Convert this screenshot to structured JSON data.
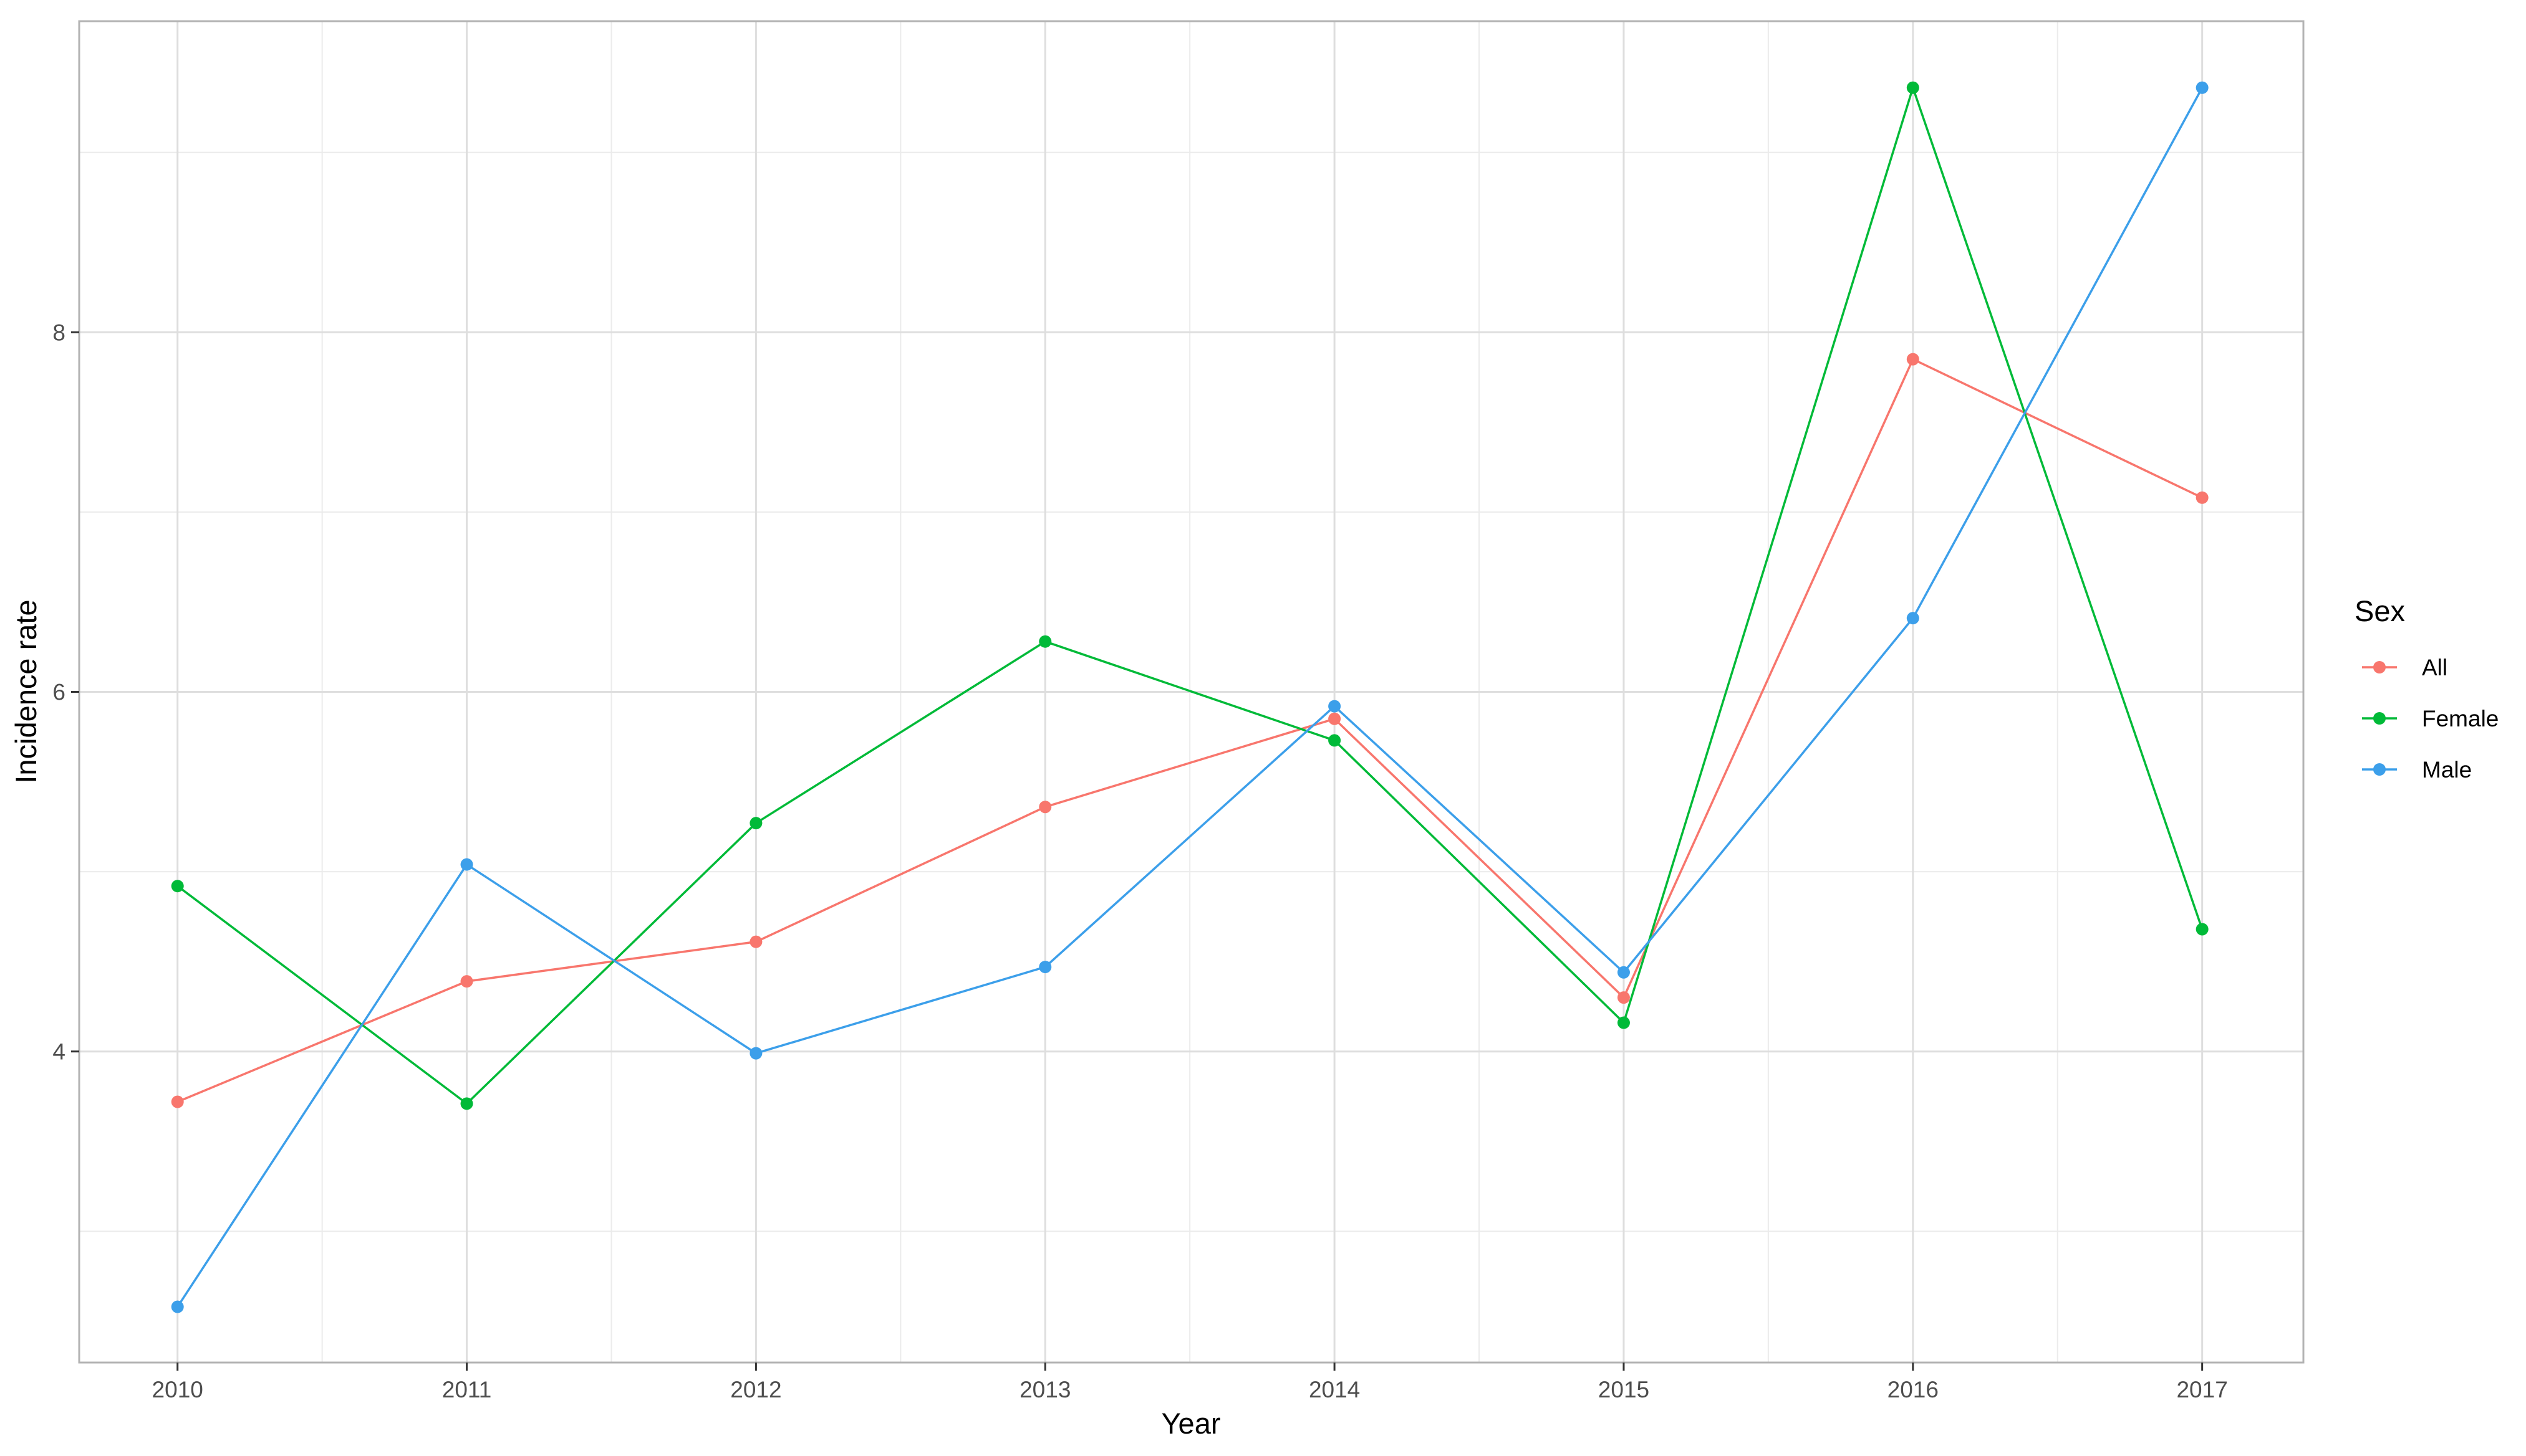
{
  "chart_data": {
    "type": "line",
    "xlabel": "Year",
    "ylabel": "Incidence rate",
    "x": [
      2010,
      2011,
      2012,
      2013,
      2014,
      2015,
      2016,
      2017
    ],
    "x_tick_labels": [
      "2010",
      "2011",
      "2012",
      "2013",
      "2014",
      "2015",
      "2016",
      "2017"
    ],
    "y_ticks": [
      4,
      6,
      8
    ],
    "y_tick_labels": [
      "4",
      "6",
      "8"
    ],
    "xlim": [
      2009.66,
      2017.35
    ],
    "ylim": [
      2.27,
      9.73
    ],
    "grid": true,
    "legend": {
      "title": "Sex",
      "position": "right"
    },
    "series": [
      {
        "name": "All",
        "color": "#F8766D",
        "values": [
          3.72,
          4.39,
          4.61,
          5.36,
          5.85,
          4.3,
          7.85,
          7.08
        ]
      },
      {
        "name": "Female",
        "color": "#00BA38",
        "values": [
          4.92,
          3.71,
          5.27,
          6.28,
          5.73,
          4.16,
          9.36,
          4.68
        ]
      },
      {
        "name": "Male",
        "color": "#3C9FEA",
        "values": [
          2.58,
          5.04,
          3.99,
          4.47,
          5.92,
          4.44,
          6.41,
          9.36
        ]
      }
    ]
  }
}
